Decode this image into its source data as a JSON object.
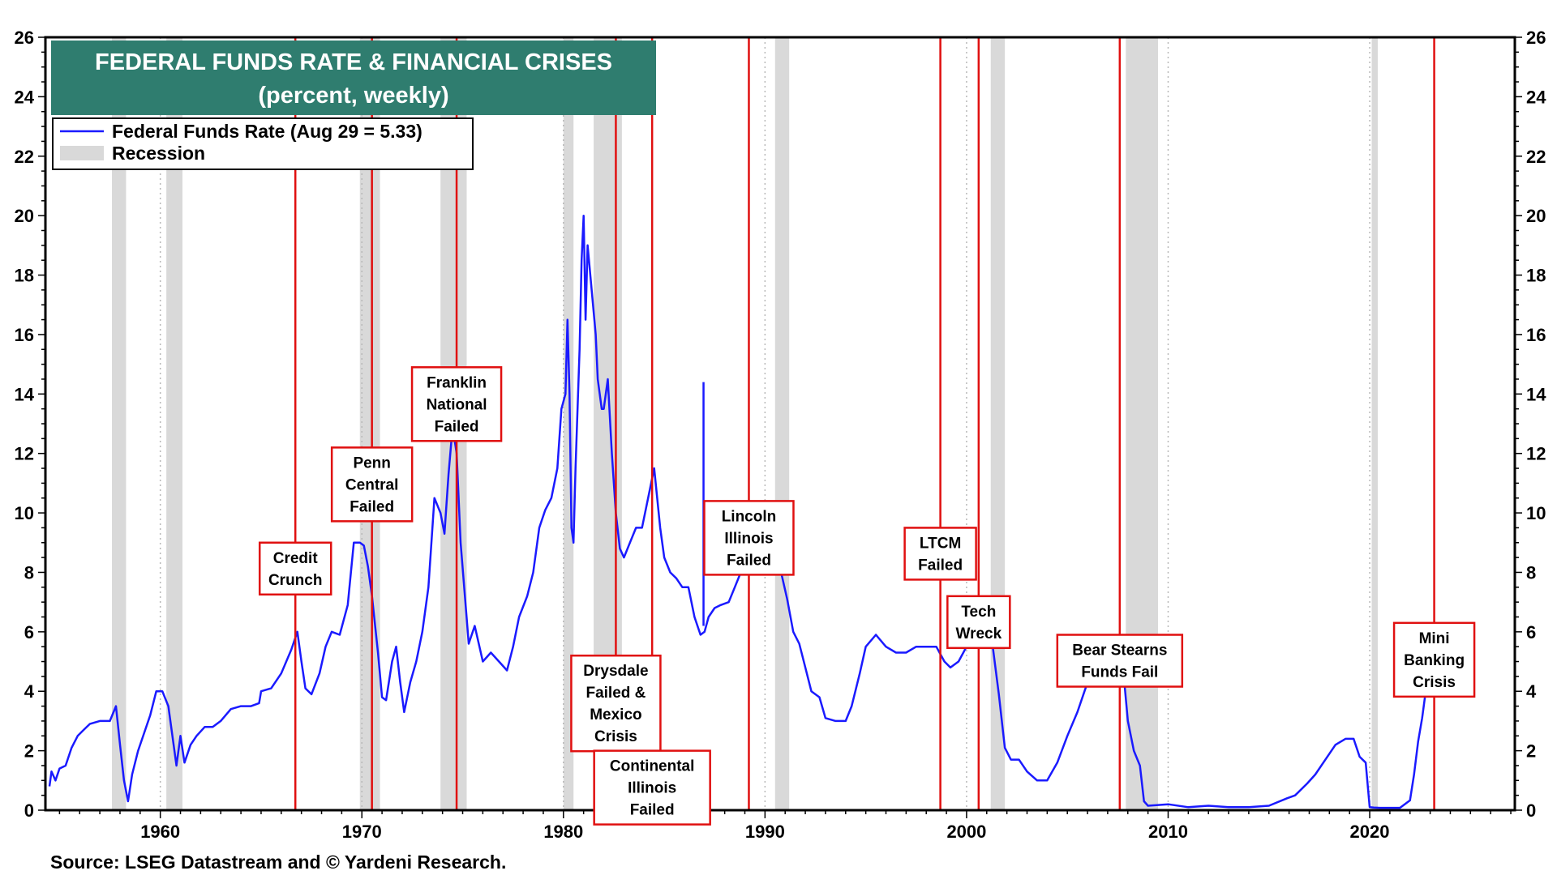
{
  "chart_data": {
    "type": "line",
    "title": "FEDERAL FUNDS RATE & FINANCIAL CRISES",
    "subtitle": "(percent, weekly)",
    "source": "Source: LSEG Datastream and © Yardeni Research.",
    "xlim": [
      1954.3,
      2027.2
    ],
    "ylim": [
      0,
      26
    ],
    "x_ticks": [
      1960,
      1970,
      1980,
      1990,
      2000,
      2010,
      2020
    ],
    "y_ticks": [
      0,
      2,
      4,
      6,
      8,
      10,
      12,
      14,
      16,
      18,
      20,
      22,
      24,
      26
    ],
    "grid": true,
    "legend_position": "top-left",
    "colors": {
      "series": "#1a1aff",
      "recession": "#d9d9d9",
      "crisis_line": "#e01010",
      "title_box": "#2f7d6f",
      "annotation_border": "#e01010"
    },
    "legend": [
      {
        "label": "Federal Funds Rate (Aug 29 = 5.33)",
        "kind": "line"
      },
      {
        "label": "Recession",
        "kind": "band"
      }
    ],
    "recessions": [
      [
        1957.6,
        1958.3
      ],
      [
        1960.3,
        1961.1
      ],
      [
        1969.9,
        1970.9
      ],
      [
        1973.9,
        1975.2
      ],
      [
        1980.0,
        1980.5
      ],
      [
        1981.5,
        1982.9
      ],
      [
        1990.5,
        1991.2
      ],
      [
        2001.2,
        2001.9
      ],
      [
        2007.9,
        2009.5
      ],
      [
        2020.1,
        2020.4
      ]
    ],
    "series": [
      {
        "name": "Federal Funds Rate",
        "x": [
          1954.5,
          1954.6,
          1954.8,
          1955.0,
          1955.3,
          1955.6,
          1955.9,
          1956.2,
          1956.5,
          1957.0,
          1957.5,
          1957.8,
          1958.0,
          1958.2,
          1958.4,
          1958.6,
          1958.9,
          1959.2,
          1959.5,
          1959.8,
          1960.1,
          1960.4,
          1960.6,
          1960.8,
          1961.0,
          1961.2,
          1961.5,
          1961.8,
          1962.2,
          1962.6,
          1963.0,
          1963.5,
          1964.0,
          1964.5,
          1964.9,
          1965.0,
          1965.5,
          1966.0,
          1966.5,
          1966.8,
          1967.0,
          1967.2,
          1967.5,
          1967.9,
          1968.2,
          1968.5,
          1968.9,
          1969.3,
          1969.6,
          1969.9,
          1970.1,
          1970.3,
          1970.5,
          1970.8,
          1971.0,
          1971.2,
          1971.5,
          1971.7,
          1971.9,
          1972.1,
          1972.4,
          1972.7,
          1973.0,
          1973.3,
          1973.6,
          1973.9,
          1974.1,
          1974.3,
          1974.5,
          1974.7,
          1974.9,
          1975.1,
          1975.3,
          1975.6,
          1976.0,
          1976.4,
          1976.8,
          1977.2,
          1977.5,
          1977.8,
          1978.2,
          1978.5,
          1978.8,
          1979.1,
          1979.4,
          1979.7,
          1979.9,
          1980.1,
          1980.2,
          1980.3,
          1980.4,
          1980.5,
          1980.6,
          1980.8,
          1980.9,
          1981.0,
          1981.1,
          1981.2,
          1981.4,
          1981.6,
          1981.7,
          1981.9,
          1982.0,
          1982.2,
          1982.4,
          1982.6,
          1982.8,
          1983.0,
          1983.3,
          1983.6,
          1983.9,
          1984.2,
          1984.5,
          1984.8,
          1985.0,
          1985.3,
          1985.6,
          1985.9,
          1986.2,
          1986.5,
          1986.8,
          1987.0,
          1987.2,
          1987.5,
          1987.8,
          1988.2,
          1988.5,
          1988.8,
          1989.1,
          1989.4,
          1989.7,
          1990.0,
          1990.4,
          1990.8,
          1991.1,
          1991.4,
          1991.7,
          1992.0,
          1992.3,
          1992.7,
          1993.0,
          1993.5,
          1994.0,
          1994.3,
          1994.7,
          1995.0,
          1995.5,
          1996.0,
          1996.5,
          1997.0,
          1997.5,
          1998.0,
          1998.5,
          1998.9,
          1999.2,
          1999.6,
          2000.0,
          2000.4,
          2000.8,
          2001.0,
          2001.3,
          2001.6,
          2001.9,
          2002.2,
          2002.6,
          2003.0,
          2003.5,
          2004.0,
          2004.5,
          2005.0,
          2005.5,
          2006.0,
          2006.5,
          2007.0,
          2007.5,
          2007.8,
          2008.0,
          2008.3,
          2008.6,
          2008.8,
          2009.0,
          2010.0,
          2011.0,
          2012.0,
          2013.0,
          2014.0,
          2015.0,
          2015.9,
          2016.3,
          2016.9,
          2017.3,
          2017.8,
          2018.3,
          2018.8,
          2019.2,
          2019.5,
          2019.8,
          2020.0,
          2020.2,
          2020.5,
          2021.0,
          2021.5,
          2022.0,
          2022.2,
          2022.4,
          2022.6,
          2022.8,
          2023.0,
          2023.3,
          2023.6,
          2024.0,
          2024.5
        ],
        "y": [
          0.8,
          1.3,
          1.0,
          1.4,
          1.5,
          2.1,
          2.5,
          2.7,
          2.9,
          3.0,
          3.0,
          3.5,
          2.2,
          1.0,
          0.3,
          1.2,
          2.0,
          2.6,
          3.2,
          4.0,
          4.0,
          3.5,
          2.5,
          1.5,
          2.5,
          1.6,
          2.2,
          2.5,
          2.8,
          2.8,
          3.0,
          3.4,
          3.5,
          3.5,
          3.6,
          4.0,
          4.1,
          4.6,
          5.4,
          6.0,
          5.0,
          4.1,
          3.9,
          4.6,
          5.5,
          6.0,
          5.9,
          6.9,
          9.0,
          9.0,
          8.9,
          8.2,
          7.2,
          5.3,
          3.8,
          3.7,
          5.0,
          5.5,
          4.3,
          3.3,
          4.3,
          5.0,
          6.0,
          7.5,
          10.5,
          10.0,
          9.3,
          11.3,
          12.9,
          12.0,
          9.0,
          7.3,
          5.6,
          6.2,
          5.0,
          5.3,
          5.0,
          4.7,
          5.5,
          6.5,
          7.2,
          8.0,
          9.5,
          10.1,
          10.5,
          11.5,
          13.5,
          14.0,
          16.5,
          14.0,
          9.5,
          9.0,
          11.5,
          15.5,
          18.5,
          20.0,
          16.5,
          19.0,
          17.5,
          16.0,
          14.5,
          13.5,
          13.5,
          14.5,
          12.0,
          10.0,
          8.8,
          8.5,
          9.0,
          9.5,
          9.5,
          10.5,
          11.5,
          9.5,
          8.5,
          8.0,
          7.8,
          7.5,
          7.5,
          6.5,
          5.9,
          6.0,
          6.5,
          6.8,
          6.9,
          7.0,
          7.5,
          8.0,
          9.2,
          9.6,
          9.0,
          8.4,
          8.2,
          8.0,
          7.1,
          6.0,
          5.6,
          4.8,
          4.0,
          3.8,
          3.1,
          3.0,
          3.0,
          3.5,
          4.6,
          5.5,
          5.9,
          5.5,
          5.3,
          5.3,
          5.5,
          5.5,
          5.5,
          5.0,
          4.8,
          5.0,
          5.5,
          6.0,
          6.5,
          6.5,
          5.5,
          3.9,
          2.1,
          1.7,
          1.7,
          1.3,
          1.0,
          1.0,
          1.6,
          2.5,
          3.3,
          4.3,
          5.0,
          5.3,
          5.2,
          4.5,
          3.0,
          2.0,
          1.5,
          0.3,
          0.15,
          0.2,
          0.1,
          0.15,
          0.1,
          0.1,
          0.15,
          0.4,
          0.5,
          0.9,
          1.2,
          1.7,
          2.2,
          2.4,
          2.4,
          1.8,
          1.6,
          0.1,
          0.09,
          0.08,
          0.08,
          0.08,
          0.33,
          1.2,
          2.3,
          3.1,
          4.1,
          4.6,
          5.1,
          5.3,
          5.33,
          5.33
        ]
      }
    ],
    "spikes": [
      {
        "x": 1986.95,
        "y": 14.4
      }
    ],
    "crises": [
      {
        "year": 1966.7,
        "lines": [
          "Credit",
          "Crunch"
        ],
        "label_y": 9.0
      },
      {
        "year": 1970.5,
        "lines": [
          "Penn",
          "Central",
          "Failed"
        ],
        "label_y": 12.2
      },
      {
        "year": 1974.7,
        "lines": [
          "Franklin",
          "National",
          "Failed"
        ],
        "label_y": 14.9
      },
      {
        "year": 1982.6,
        "lines": [
          "Drysdale",
          "Failed &",
          "Mexico",
          "Crisis"
        ],
        "label_y": 5.2
      },
      {
        "year": 1984.4,
        "lines": [
          "Continental",
          "Illinois",
          "Failed"
        ],
        "label_y": 2.0
      },
      {
        "year": 1989.2,
        "lines": [
          "Lincoln",
          "Illinois",
          "Failed"
        ],
        "label_y": 10.4
      },
      {
        "year": 1998.7,
        "lines": [
          "LTCM",
          "Failed"
        ],
        "label_y": 9.5
      },
      {
        "year": 2000.6,
        "lines": [
          "Tech",
          "Wreck"
        ],
        "label_y": 7.2
      },
      {
        "year": 2007.6,
        "lines": [
          "Bear Stearns",
          "Funds Fail"
        ],
        "label_y": 5.9
      },
      {
        "year": 2023.2,
        "lines": [
          "Mini",
          "Banking",
          "Crisis"
        ],
        "label_y": 6.3
      }
    ]
  }
}
